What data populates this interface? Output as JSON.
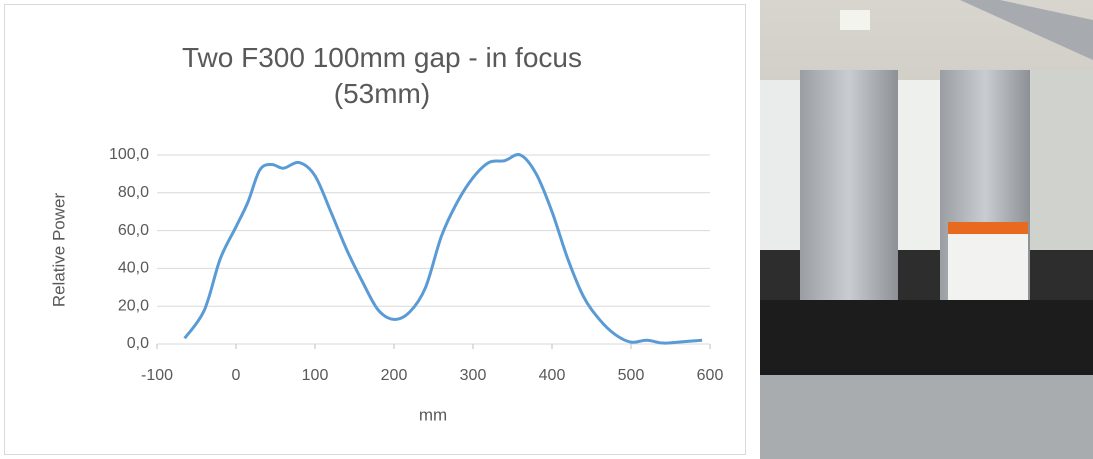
{
  "chart_data": {
    "type": "line",
    "title": "Two F300 100mm gap - in focus (53mm)",
    "x_label": "mm",
    "y_label": "Relative Power",
    "x": [
      -65,
      -40,
      -20,
      0,
      15,
      30,
      45,
      60,
      80,
      100,
      120,
      140,
      160,
      180,
      200,
      220,
      240,
      260,
      280,
      300,
      320,
      340,
      360,
      380,
      400,
      420,
      440,
      460,
      480,
      500,
      520,
      540,
      560,
      590
    ],
    "series": [
      {
        "name": "Relative Power",
        "color": "#5b9bd5",
        "values": [
          3,
          18,
          45,
          62,
          75,
          92,
          95,
          93,
          96,
          89,
          70,
          50,
          33,
          18,
          13,
          17,
          30,
          57,
          75,
          88,
          96,
          97,
          100,
          90,
          70,
          45,
          25,
          13,
          5,
          1,
          2,
          0.5,
          1,
          2
        ]
      }
    ],
    "xlim": [
      -100,
      600
    ],
    "xticks": [
      -100,
      0,
      100,
      200,
      300,
      400,
      500,
      600
    ],
    "ylim": [
      0,
      100
    ],
    "yticks": [
      {
        "value": 0,
        "label": "0,0"
      },
      {
        "value": 20,
        "label": "20,0"
      },
      {
        "value": 40,
        "label": "40,0"
      },
      {
        "value": 60,
        "label": "60,0"
      },
      {
        "value": 80,
        "label": "80,0"
      },
      {
        "value": 100,
        "label": "100,0"
      }
    ],
    "grid": true
  }
}
